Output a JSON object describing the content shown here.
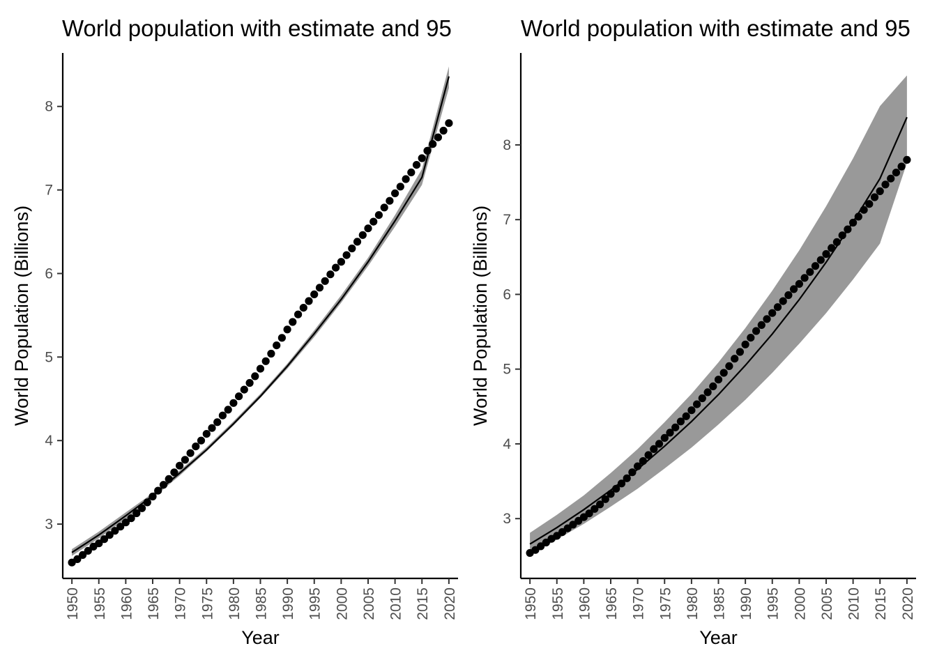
{
  "chart_data": [
    {
      "type": "scatter",
      "title": "World population with estimate and 95",
      "xlabel": "Year",
      "ylabel": "World Population (Billions)",
      "xlim": [
        1948.3,
        2021.7
      ],
      "ylim": [
        2.35,
        8.64
      ],
      "x_ticks": [
        1950,
        1955,
        1960,
        1965,
        1970,
        1975,
        1980,
        1985,
        1990,
        1995,
        2000,
        2005,
        2010,
        2015,
        2020
      ],
      "y_ticks": [
        3,
        4,
        5,
        6,
        7,
        8
      ],
      "grid": false,
      "legend": "none",
      "series": [
        {
          "kind": "points",
          "x": [
            1950,
            1951,
            1952,
            1953,
            1954,
            1955,
            1956,
            1957,
            1958,
            1959,
            1960,
            1961,
            1962,
            1963,
            1964,
            1965,
            1966,
            1967,
            1968,
            1969,
            1970,
            1971,
            1972,
            1973,
            1974,
            1975,
            1976,
            1977,
            1978,
            1979,
            1980,
            1981,
            1982,
            1983,
            1984,
            1985,
            1986,
            1987,
            1988,
            1989,
            1990,
            1991,
            1992,
            1993,
            1994,
            1995,
            1996,
            1997,
            1998,
            1999,
            2000,
            2001,
            2002,
            2003,
            2004,
            2005,
            2006,
            2007,
            2008,
            2009,
            2010,
            2011,
            2012,
            2013,
            2014,
            2015,
            2016,
            2017,
            2018,
            2019,
            2020
          ],
          "y": [
            2.54,
            2.58,
            2.63,
            2.68,
            2.73,
            2.77,
            2.82,
            2.87,
            2.92,
            2.97,
            3.02,
            3.07,
            3.13,
            3.19,
            3.26,
            3.33,
            3.4,
            3.47,
            3.54,
            3.62,
            3.7,
            3.77,
            3.85,
            3.93,
            4.0,
            4.08,
            4.15,
            4.22,
            4.3,
            4.37,
            4.45,
            4.53,
            4.61,
            4.69,
            4.77,
            4.86,
            4.95,
            5.04,
            5.14,
            5.23,
            5.33,
            5.42,
            5.51,
            5.59,
            5.67,
            5.75,
            5.83,
            5.91,
            5.99,
            6.07,
            6.14,
            6.22,
            6.3,
            6.38,
            6.46,
            6.54,
            6.62,
            6.7,
            6.79,
            6.87,
            6.96,
            7.04,
            7.13,
            7.21,
            7.3,
            7.38,
            7.47,
            7.55,
            7.63,
            7.71,
            7.8
          ]
        },
        {
          "kind": "fit",
          "x": [
            1950,
            1955,
            1960,
            1965,
            1970,
            1975,
            1980,
            1985,
            1990,
            1995,
            2000,
            2005,
            2010,
            2015,
            2020
          ],
          "y": [
            2.66,
            2.87,
            3.1,
            3.34,
            3.61,
            3.89,
            4.2,
            4.53,
            4.89,
            5.28,
            5.69,
            6.14,
            6.63,
            7.15,
            8.36
          ],
          "band_lower": [
            2.62,
            2.83,
            3.06,
            3.31,
            3.58,
            3.87,
            4.18,
            4.51,
            4.86,
            5.24,
            5.65,
            6.09,
            6.56,
            7.06,
            8.22
          ],
          "band_upper": [
            2.7,
            2.91,
            3.14,
            3.37,
            3.64,
            3.92,
            4.23,
            4.56,
            4.92,
            5.32,
            5.74,
            6.19,
            6.7,
            7.25,
            8.48
          ]
        }
      ]
    },
    {
      "type": "scatter",
      "title": "World population with estimate and 95",
      "xlabel": "Year",
      "ylabel": "World Population (Billions)",
      "xlim": [
        1948.3,
        2021.7
      ],
      "ylim": [
        2.2,
        9.23
      ],
      "x_ticks": [
        1950,
        1955,
        1960,
        1965,
        1970,
        1975,
        1980,
        1985,
        1990,
        1995,
        2000,
        2005,
        2010,
        2015,
        2020
      ],
      "y_ticks": [
        3,
        4,
        5,
        6,
        7,
        8
      ],
      "grid": false,
      "legend": "none",
      "series": [
        {
          "kind": "points",
          "x": [
            1950,
            1951,
            1952,
            1953,
            1954,
            1955,
            1956,
            1957,
            1958,
            1959,
            1960,
            1961,
            1962,
            1963,
            1964,
            1965,
            1966,
            1967,
            1968,
            1969,
            1970,
            1971,
            1972,
            1973,
            1974,
            1975,
            1976,
            1977,
            1978,
            1979,
            1980,
            1981,
            1982,
            1983,
            1984,
            1985,
            1986,
            1987,
            1988,
            1989,
            1990,
            1991,
            1992,
            1993,
            1994,
            1995,
            1996,
            1997,
            1998,
            1999,
            2000,
            2001,
            2002,
            2003,
            2004,
            2005,
            2006,
            2007,
            2008,
            2009,
            2010,
            2011,
            2012,
            2013,
            2014,
            2015,
            2016,
            2017,
            2018,
            2019,
            2020
          ],
          "y": [
            2.54,
            2.58,
            2.63,
            2.68,
            2.73,
            2.77,
            2.82,
            2.87,
            2.92,
            2.97,
            3.02,
            3.07,
            3.13,
            3.19,
            3.26,
            3.33,
            3.4,
            3.47,
            3.54,
            3.62,
            3.7,
            3.77,
            3.85,
            3.93,
            4.0,
            4.08,
            4.15,
            4.22,
            4.3,
            4.37,
            4.45,
            4.53,
            4.61,
            4.69,
            4.77,
            4.86,
            4.95,
            5.04,
            5.14,
            5.23,
            5.33,
            5.42,
            5.51,
            5.59,
            5.67,
            5.75,
            5.83,
            5.91,
            5.99,
            6.07,
            6.14,
            6.22,
            6.3,
            6.38,
            6.46,
            6.54,
            6.62,
            6.7,
            6.79,
            6.87,
            6.96,
            7.04,
            7.13,
            7.21,
            7.3,
            7.38,
            7.47,
            7.55,
            7.63,
            7.71,
            7.8
          ]
        },
        {
          "kind": "fit",
          "x": [
            1950,
            1955,
            1960,
            1965,
            1970,
            1975,
            1980,
            1985,
            1990,
            1995,
            2000,
            2005,
            2010,
            2015,
            2020
          ],
          "y": [
            2.66,
            2.88,
            3.12,
            3.38,
            3.66,
            3.97,
            4.3,
            4.66,
            5.05,
            5.47,
            5.93,
            6.43,
            6.97,
            7.55,
            8.37
          ],
          "band_lower": [
            2.52,
            2.72,
            2.93,
            3.16,
            3.4,
            3.67,
            3.95,
            4.26,
            4.59,
            4.95,
            5.34,
            5.75,
            6.2,
            6.68,
            7.76
          ],
          "band_upper": [
            2.81,
            3.05,
            3.31,
            3.61,
            3.93,
            4.29,
            4.67,
            5.09,
            5.55,
            6.05,
            6.59,
            7.18,
            7.82,
            8.52,
            8.93
          ]
        }
      ]
    }
  ]
}
